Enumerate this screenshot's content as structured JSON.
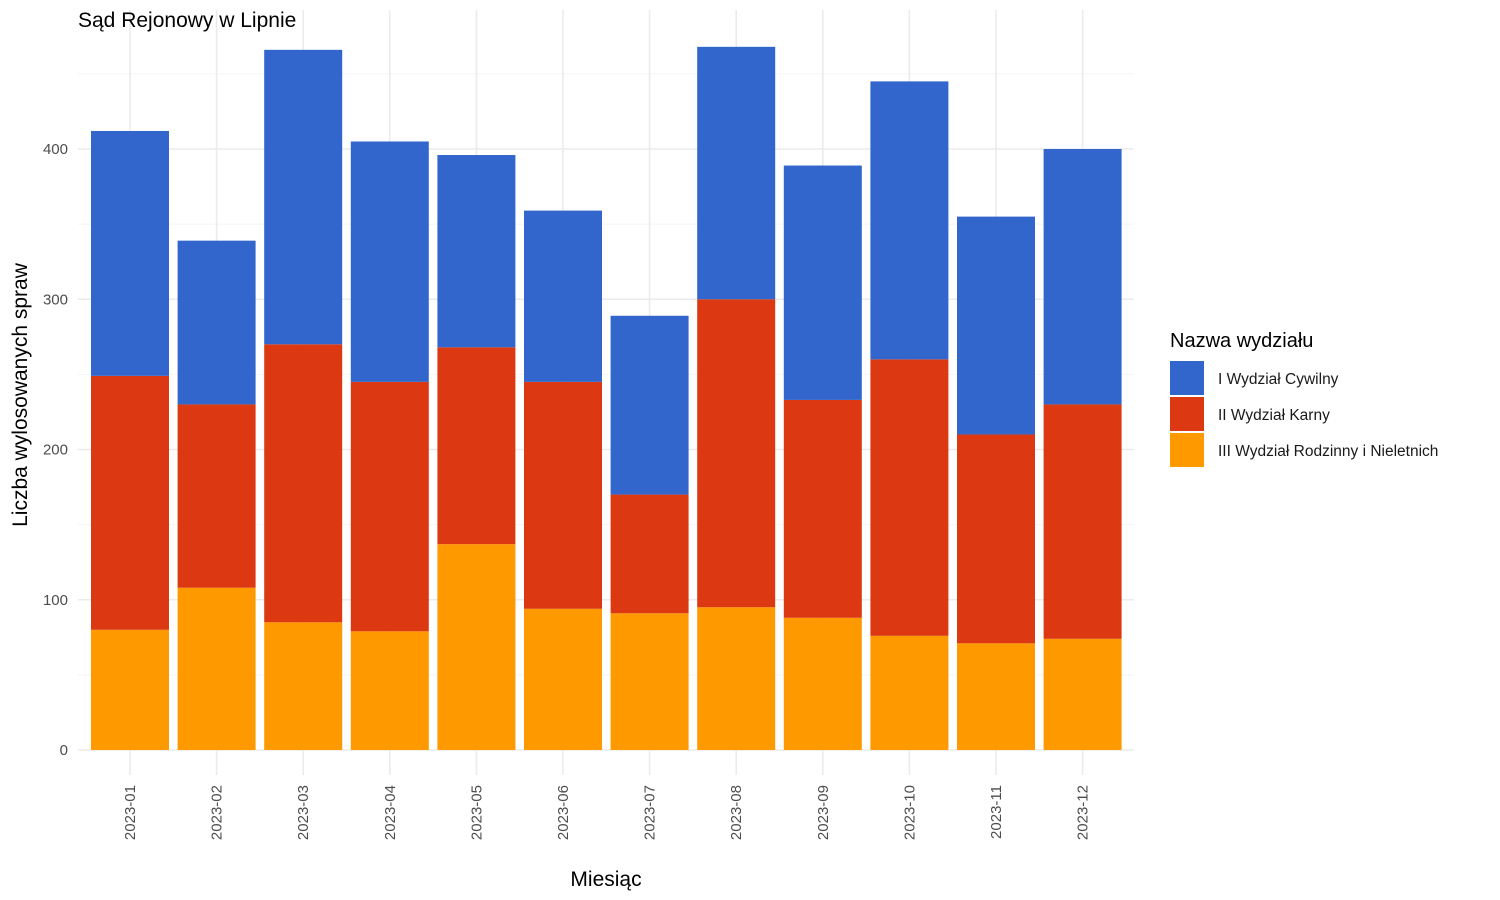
{
  "chart_data": {
    "type": "bar",
    "stacked": true,
    "title": "Sąd Rejonowy w Lipnie",
    "xlabel": "Miesiąc",
    "ylabel": "Liczba wylosowanych spraw",
    "ylim": [
      0,
      490
    ],
    "yticks": [
      0,
      100,
      200,
      300,
      400
    ],
    "grid": true,
    "legend_position": "right",
    "legend_title": "Nazwa wydziału",
    "categories": [
      "2023-01",
      "2023-02",
      "2023-03",
      "2023-04",
      "2023-05",
      "2023-06",
      "2023-07",
      "2023-08",
      "2023-09",
      "2023-10",
      "2023-11",
      "2023-12"
    ],
    "series": [
      {
        "name": "I Wydział Cywilny",
        "color": "#3366CC",
        "values": [
          163,
          109,
          196,
          160,
          128,
          114,
          119,
          168,
          156,
          185,
          145,
          170
        ]
      },
      {
        "name": "II Wydział Karny",
        "color": "#DC3912",
        "values": [
          169,
          122,
          185,
          166,
          131,
          151,
          79,
          205,
          145,
          184,
          139,
          156
        ]
      },
      {
        "name": "III Wydział Rodzinny i Nieletnich",
        "color": "#FF9900",
        "values": [
          80,
          108,
          85,
          79,
          137,
          94,
          91,
          95,
          88,
          76,
          71,
          74
        ]
      }
    ],
    "stack_order": [
      "III Wydział Rodzinny i Nieletnich",
      "II Wydział Karny",
      "I Wydział Cywilny"
    ]
  }
}
